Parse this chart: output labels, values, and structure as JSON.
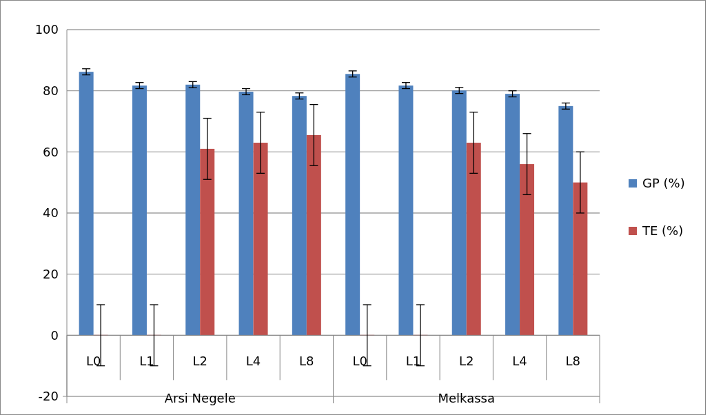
{
  "chart_data": {
    "type": "bar",
    "categories": [
      "L0",
      "L1",
      "L2",
      "L4",
      "L8",
      "L0",
      "L1",
      "L2",
      "L4",
      "L8"
    ],
    "annotations": [
      "Arsi Negele",
      "Melkassa"
    ],
    "series": [
      {
        "name": "GP (%)",
        "color": "#4f81bd",
        "values": [
          86.2,
          81.7,
          82,
          79.7,
          78.3,
          85.5,
          81.7,
          80.1,
          79,
          75
        ],
        "errors": [
          1,
          1,
          1,
          1,
          1,
          1,
          1,
          1,
          1,
          1
        ]
      },
      {
        "name": "TE (%)",
        "color": "#c0504d",
        "values": [
          0,
          0,
          61,
          63,
          65.5,
          0,
          0,
          63,
          56,
          50
        ],
        "errors": [
          10,
          10,
          10,
          10,
          10,
          10,
          10,
          10,
          10,
          10
        ]
      }
    ],
    "ylim": [
      -20,
      100
    ],
    "yticks": [
      -20,
      0,
      20,
      40,
      60,
      80,
      100
    ],
    "grid": "y",
    "legend": "right"
  }
}
